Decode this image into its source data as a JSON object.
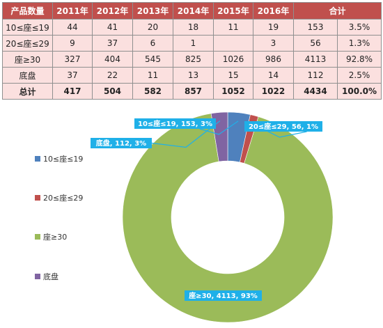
{
  "table": {
    "headers": [
      "产品数量",
      "2011年",
      "2012年",
      "2013年",
      "2014年",
      "2015年",
      "2016年",
      "合计"
    ],
    "rows": [
      {
        "label": "10≤座≤19",
        "values": [
          "44",
          "41",
          "20",
          "18",
          "11",
          "19"
        ],
        "total": "153",
        "share": "3.5%"
      },
      {
        "label": "20≤座≤29",
        "values": [
          "9",
          "37",
          "6",
          "1",
          "",
          "3"
        ],
        "total": "56",
        "share": "1.3%"
      },
      {
        "label": "座≥30",
        "values": [
          "327",
          "404",
          "545",
          "825",
          "1026",
          "986"
        ],
        "total": "4113",
        "share": "92.8%"
      },
      {
        "label": "底盘",
        "values": [
          "37",
          "22",
          "11",
          "13",
          "15",
          "14"
        ],
        "total": "112",
        "share": "2.5%"
      },
      {
        "label": "总计",
        "values": [
          "417",
          "504",
          "582",
          "857",
          "1052",
          "1022"
        ],
        "total": "4434",
        "share": "100.0%"
      }
    ]
  },
  "chart_data": {
    "type": "pie",
    "variant": "doughnut",
    "legend_position": "left",
    "title": "",
    "categories": [
      "10≤座≤19",
      "20≤座≤29",
      "座≥30",
      "底盘"
    ],
    "values": [
      153,
      56,
      4113,
      112
    ],
    "colors": [
      "#4f81bd",
      "#c0504d",
      "#9bbb59",
      "#8064a2"
    ],
    "data_labels": [
      "10≤座≤19, 153, 3%",
      "20≤座≤29, 56, 1%",
      "座≥30, 4113, 93%",
      "底盘, 112, 3%"
    ],
    "label_bg": "#1fb0e8"
  }
}
